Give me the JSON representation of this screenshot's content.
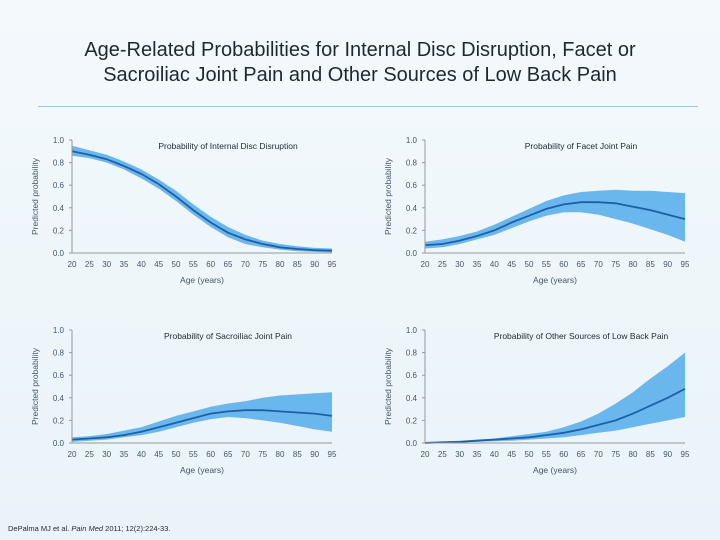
{
  "title_line1": "Age-Related Probabilities for Internal Disc Disruption, Facet or",
  "title_line2": "Sacroiliac Joint Pain and Other Sources of Low Back Pain",
  "citation": {
    "authors": "DePalma MJ et al.",
    "journal": "Pain Med",
    "details": "2011; 12(2):224-33."
  },
  "colors": {
    "band": "#6ab7ee",
    "line": "#1f5fa8",
    "axis": "#999999"
  },
  "chart_data": [
    {
      "type": "line",
      "title": "Probability of Internal Disc Disruption",
      "xlabel": "Age (years)",
      "ylabel": "Predicted probability",
      "xlim": [
        20,
        95
      ],
      "ylim": [
        0,
        1.0
      ],
      "x_ticks": [
        20,
        25,
        30,
        35,
        40,
        45,
        50,
        55,
        60,
        65,
        70,
        75,
        80,
        85,
        90,
        95
      ],
      "y_ticks": [
        "0.0",
        "0.2",
        "0.4",
        "0.6",
        "0.8",
        "1.0"
      ],
      "x": [
        20,
        25,
        30,
        35,
        40,
        45,
        50,
        55,
        60,
        65,
        70,
        75,
        80,
        85,
        90,
        95
      ],
      "y": [
        0.9,
        0.87,
        0.83,
        0.77,
        0.7,
        0.61,
        0.5,
        0.38,
        0.27,
        0.18,
        0.12,
        0.08,
        0.05,
        0.035,
        0.025,
        0.02
      ],
      "lower": [
        0.86,
        0.84,
        0.8,
        0.74,
        0.66,
        0.57,
        0.46,
        0.34,
        0.23,
        0.14,
        0.08,
        0.05,
        0.03,
        0.015,
        0.01,
        0.005
      ],
      "upper": [
        0.95,
        0.91,
        0.87,
        0.81,
        0.74,
        0.65,
        0.55,
        0.43,
        0.32,
        0.23,
        0.16,
        0.11,
        0.08,
        0.06,
        0.045,
        0.04
      ]
    },
    {
      "type": "line",
      "title": "Probability of Facet Joint Pain",
      "xlabel": "Age (years)",
      "ylabel": "Predicted probability",
      "xlim": [
        20,
        95
      ],
      "ylim": [
        0,
        1.0
      ],
      "x_ticks": [
        20,
        25,
        30,
        35,
        40,
        45,
        50,
        55,
        60,
        65,
        70,
        75,
        80,
        85,
        90,
        95
      ],
      "y_ticks": [
        "0.0",
        "0.2",
        "0.4",
        "0.6",
        "0.8",
        "1.0"
      ],
      "x": [
        20,
        25,
        30,
        35,
        40,
        45,
        50,
        55,
        60,
        65,
        70,
        75,
        80,
        85,
        90,
        95
      ],
      "y": [
        0.07,
        0.08,
        0.11,
        0.15,
        0.2,
        0.27,
        0.33,
        0.39,
        0.43,
        0.45,
        0.45,
        0.44,
        0.41,
        0.38,
        0.34,
        0.3
      ],
      "lower": [
        0.04,
        0.05,
        0.08,
        0.12,
        0.16,
        0.22,
        0.28,
        0.33,
        0.36,
        0.36,
        0.34,
        0.3,
        0.26,
        0.21,
        0.16,
        0.1
      ],
      "upper": [
        0.1,
        0.12,
        0.15,
        0.19,
        0.25,
        0.32,
        0.39,
        0.46,
        0.51,
        0.54,
        0.55,
        0.56,
        0.55,
        0.55,
        0.54,
        0.53
      ]
    },
    {
      "type": "line",
      "title": "Probability of Sacroiliac Joint Pain",
      "xlabel": "Age (years)",
      "ylabel": "Predicted probability",
      "xlim": [
        20,
        95
      ],
      "ylim": [
        0,
        1.0
      ],
      "x_ticks": [
        20,
        25,
        30,
        35,
        40,
        45,
        50,
        55,
        60,
        65,
        70,
        75,
        80,
        85,
        90,
        95
      ],
      "y_ticks": [
        "0.0",
        "0.2",
        "0.4",
        "0.6",
        "0.8",
        "1.0"
      ],
      "x": [
        20,
        25,
        30,
        35,
        40,
        45,
        50,
        55,
        60,
        65,
        70,
        75,
        80,
        85,
        90,
        95
      ],
      "y": [
        0.03,
        0.04,
        0.05,
        0.07,
        0.1,
        0.14,
        0.18,
        0.22,
        0.26,
        0.28,
        0.29,
        0.29,
        0.28,
        0.27,
        0.26,
        0.24
      ],
      "lower": [
        0.01,
        0.02,
        0.03,
        0.05,
        0.07,
        0.1,
        0.14,
        0.18,
        0.21,
        0.23,
        0.22,
        0.2,
        0.18,
        0.15,
        0.12,
        0.1
      ],
      "upper": [
        0.05,
        0.06,
        0.08,
        0.11,
        0.14,
        0.19,
        0.24,
        0.28,
        0.32,
        0.35,
        0.37,
        0.4,
        0.42,
        0.43,
        0.44,
        0.45
      ]
    },
    {
      "type": "line",
      "title": "Probability of Other Sources of Low Back Pain",
      "xlabel": "Age (years)",
      "ylabel": "Predicted probability",
      "xlim": [
        20,
        95
      ],
      "ylim": [
        0,
        1.0
      ],
      "x_ticks": [
        20,
        25,
        30,
        35,
        40,
        45,
        50,
        55,
        60,
        65,
        70,
        75,
        80,
        85,
        90,
        95
      ],
      "y_ticks": [
        "0.0",
        "0.2",
        "0.4",
        "0.6",
        "0.8",
        "1.0"
      ],
      "x": [
        20,
        25,
        30,
        35,
        40,
        45,
        50,
        55,
        60,
        65,
        70,
        75,
        80,
        85,
        90,
        95
      ],
      "y": [
        0.0,
        0.005,
        0.01,
        0.02,
        0.03,
        0.04,
        0.05,
        0.07,
        0.09,
        0.12,
        0.16,
        0.2,
        0.26,
        0.33,
        0.4,
        0.48
      ],
      "lower": [
        0.0,
        0.0,
        0.005,
        0.01,
        0.015,
        0.02,
        0.03,
        0.04,
        0.05,
        0.07,
        0.09,
        0.11,
        0.14,
        0.17,
        0.2,
        0.23
      ],
      "upper": [
        0.01,
        0.015,
        0.02,
        0.03,
        0.04,
        0.06,
        0.08,
        0.1,
        0.14,
        0.19,
        0.26,
        0.35,
        0.45,
        0.57,
        0.68,
        0.8
      ]
    }
  ]
}
